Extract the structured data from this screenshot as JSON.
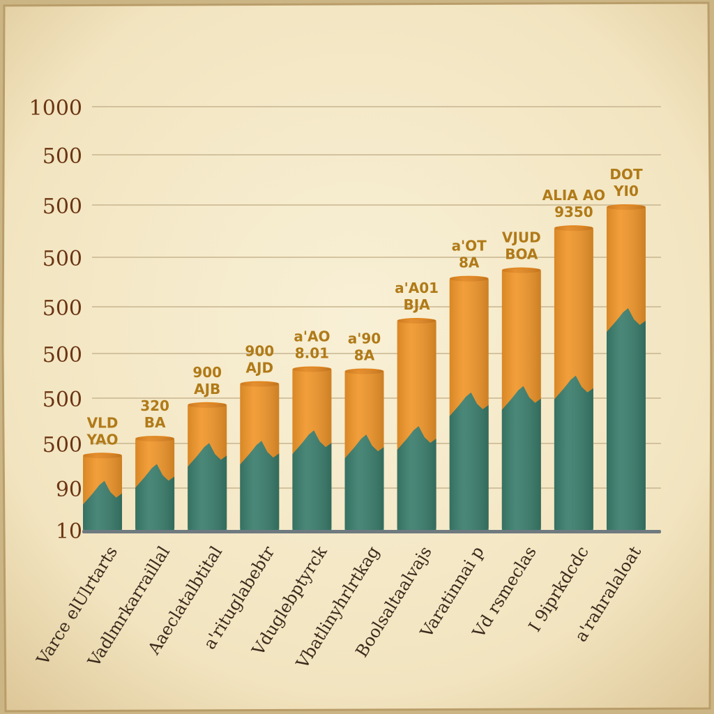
{
  "chart_data": {
    "type": "bar",
    "stacked": true,
    "y_tick_labels": [
      "1000",
      "500",
      "500",
      "500",
      "500",
      "500",
      "500",
      "500",
      "90",
      "10"
    ],
    "categories": [
      "Varce elUlrtarts",
      "Vadlmrkarraillal",
      "Aaeclatalbtital",
      "a'rituglabebtr",
      "Vduglebptyrck",
      "Vbatlinyhrlrtkag",
      "Boolsaltaalvajs",
      "Varatinnai p",
      "Vd rsmeclas",
      "I 9iprkdcdc",
      "a'rahralaloat"
    ],
    "data_labels": [
      [
        "VLD",
        "YAO"
      ],
      [
        "320",
        "BA"
      ],
      [
        "900",
        "AJB"
      ],
      [
        "900",
        "AJD"
      ],
      [
        "a'AO",
        "8.01"
      ],
      [
        "a'90",
        "8A"
      ],
      [
        "a'A01",
        "BJA"
      ],
      [
        "a'OT",
        "8A"
      ],
      [
        "VJUD",
        "BOA"
      ],
      [
        "ALIA AO",
        "9350"
      ],
      [
        "DOT",
        "YI0"
      ]
    ],
    "series": [
      {
        "values": [
          80,
          120,
          170,
          175,
          200,
          190,
          210,
          290,
          305,
          330,
          490
        ]
      },
      {
        "values": [
          100,
          100,
          130,
          175,
          185,
          190,
          290,
          310,
          315,
          390,
          280
        ]
      }
    ],
    "ylim": [
      0,
      1010
    ],
    "grid": true,
    "legend": "none",
    "colors": {
      "bottom": "#3a7d6c",
      "top": "#f0962a",
      "paper": "#f5ebcd",
      "label_text": "#b07a18",
      "axis_text": "#6b3513"
    }
  }
}
